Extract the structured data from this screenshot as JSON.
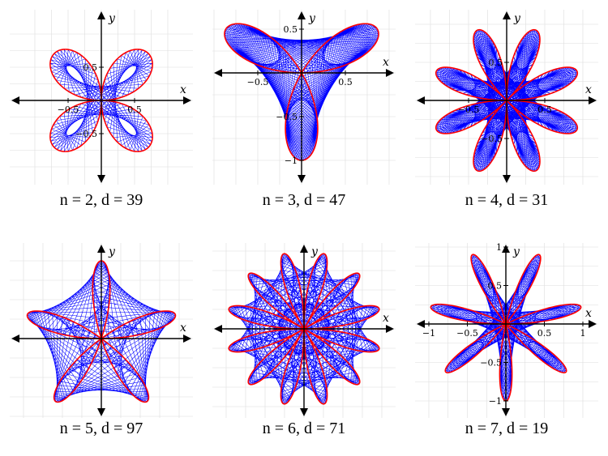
{
  "colors": {
    "rose": "#ff0000",
    "curve": "#0000ff",
    "axis": "#000000",
    "grid": "#dddddd"
  },
  "axis_names": {
    "x": "x",
    "y": "y"
  },
  "panels": [
    {
      "n": 2,
      "d": 39,
      "caption": "n = 2, d = 39",
      "x_ticks": [
        "−0.5",
        "0.5"
      ],
      "y_ticks": [
        "0.5",
        "−0.5"
      ]
    },
    {
      "n": 3,
      "d": 47,
      "caption": "n = 3, d = 47",
      "x_ticks": [
        "−0.5",
        "0.5"
      ],
      "y_ticks": [
        "0.5",
        "−0.5",
        "−1"
      ]
    },
    {
      "n": 4,
      "d": 31,
      "caption": "n = 4, d = 31",
      "x_ticks": [
        "−0.5",
        "0.5"
      ],
      "y_ticks": [
        "0.5",
        "−0.5"
      ]
    },
    {
      "n": 5,
      "d": 97,
      "caption": "n = 5, d = 97",
      "x_ticks": [],
      "y_ticks": []
    },
    {
      "n": 6,
      "d": 71,
      "caption": "n = 6, d = 71",
      "x_ticks": [],
      "y_ticks": []
    },
    {
      "n": 7,
      "d": 19,
      "caption": "n = 7, d = 19",
      "x_ticks": [
        "−1",
        "−0.5",
        "0.5",
        "1"
      ],
      "y_ticks": [
        "1",
        "0.5",
        "−0.5",
        "−1"
      ]
    }
  ]
}
